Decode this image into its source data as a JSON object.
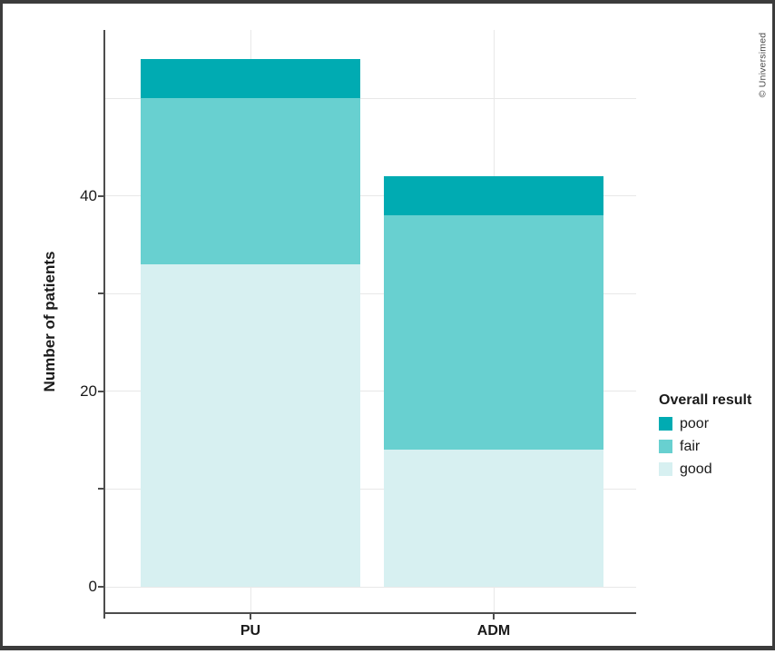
{
  "figure": {
    "credit": "© Universimed"
  },
  "chart_data": {
    "type": "bar",
    "subtype": "stacked_vertical",
    "title": "",
    "xlabel": "",
    "ylabel": "Number of patients",
    "categories": [
      "PU",
      "ADM"
    ],
    "series": [
      {
        "name": "good",
        "color": "#d7f0f1",
        "values": [
          33,
          14
        ]
      },
      {
        "name": "fair",
        "color": "#68d0d0",
        "values": [
          17,
          24
        ]
      },
      {
        "name": "poor",
        "color": "#00abb2",
        "values": [
          4,
          4
        ]
      }
    ],
    "stack_order_bottom_to_top": [
      "good",
      "fair",
      "poor"
    ],
    "totals": [
      54,
      42
    ],
    "y_axis": {
      "ticks": [
        0,
        10,
        20,
        30,
        40
      ],
      "labeled_ticks": [
        0,
        20,
        40
      ],
      "gridlines": [
        0,
        10,
        20,
        30,
        40,
        50
      ],
      "range": [
        0,
        57
      ],
      "grid": "on"
    },
    "legend": {
      "title": "Overall result",
      "position": "right",
      "items": [
        "poor",
        "fair",
        "good"
      ]
    }
  }
}
